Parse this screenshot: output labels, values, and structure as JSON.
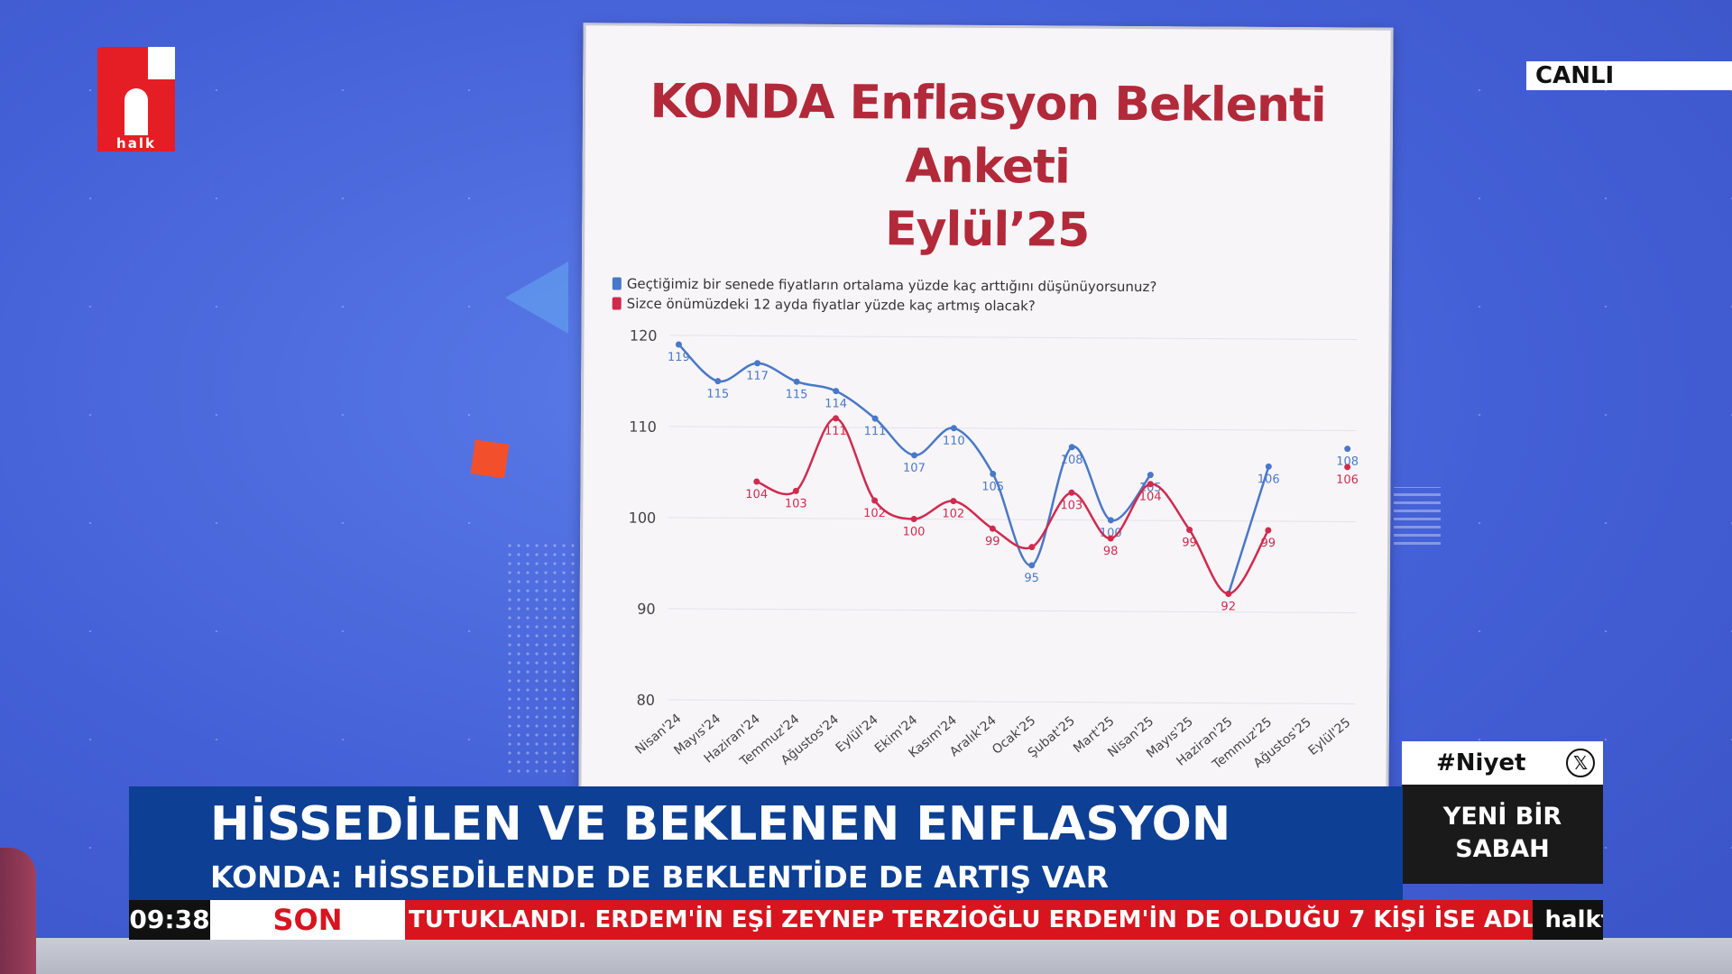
{
  "channel": {
    "logo_text": "halk",
    "live_label": "CANLI"
  },
  "board": {
    "title_line1": "KONDA Enflasyon Beklenti Anketi",
    "title_line2": "Eylül’25"
  },
  "chart_data": {
    "type": "line",
    "title": "KONDA Enflasyon Beklenti Anketi Eylül’25",
    "categories": [
      "Nisan'24",
      "Mayıs'24",
      "Haziran'24",
      "Temmuz'24",
      "Ağustos'24",
      "Eylül'24",
      "Ekim'24",
      "Kasım'24",
      "Aralık'24",
      "Ocak'25",
      "Şubat'25",
      "Mart'25",
      "Nisan'25",
      "Mayıs'25",
      "Haziran'25",
      "Temmuz'25",
      "Ağustos'25",
      "Eylül'25"
    ],
    "ylim": [
      80,
      120
    ],
    "yticks": [
      80,
      90,
      100,
      110,
      120
    ],
    "grid": true,
    "legend_position": "top-left",
    "series": [
      {
        "name": "Geçtiğimiz bir senede fiyatların ortalama yüzde kaç arttığını düşünüyorsunuz?",
        "color": "#4a78c8",
        "values": [
          119,
          115,
          117,
          115,
          114,
          111,
          107,
          110,
          105,
          95,
          108,
          100,
          105,
          null,
          92,
          106,
          null,
          108
        ],
        "labels": [
          "119",
          "115",
          "117",
          "115",
          "114",
          "111",
          "107",
          "110",
          "105",
          "95",
          "108",
          "100",
          "105",
          "",
          "",
          "106",
          "",
          "108"
        ]
      },
      {
        "name": "Sizce önümüzdeki 12 ayda fiyatlar yüzde kaç artmış olacak?",
        "color": "#d02b4e",
        "values": [
          null,
          null,
          104,
          103,
          111,
          102,
          100,
          102,
          99,
          97,
          103,
          98,
          104,
          99,
          92,
          99,
          null,
          106
        ],
        "labels": [
          "",
          "",
          "104",
          "103",
          "111",
          "102",
          "100",
          "102",
          "99",
          "",
          "103",
          "98",
          "104",
          "99",
          "92",
          "99",
          "",
          "106"
        ]
      }
    ]
  },
  "lower_third": {
    "headline": "HİSSEDİLEN VE BEKLENEN ENFLASYON",
    "subheadline": "KONDA: HİSSEDİLENDE DE BEKLENTİDE DE ARTIŞ VAR"
  },
  "ticker": {
    "time": "09:38",
    "label": "SON DAKİKA",
    "text": "TUTUKLANDI. ERDEM'İN EŞİ ZEYNEP TERZİOĞLU ERDEM'İN DE OLDUĞU 7 KİŞİ İSE ADLİ K",
    "site": "halktv.com.tr"
  },
  "side_panel": {
    "hashtag": "#Niyet",
    "icon": "x-logo-icon",
    "show_line1": "YENİ BİR",
    "show_line2": "SABAH"
  }
}
